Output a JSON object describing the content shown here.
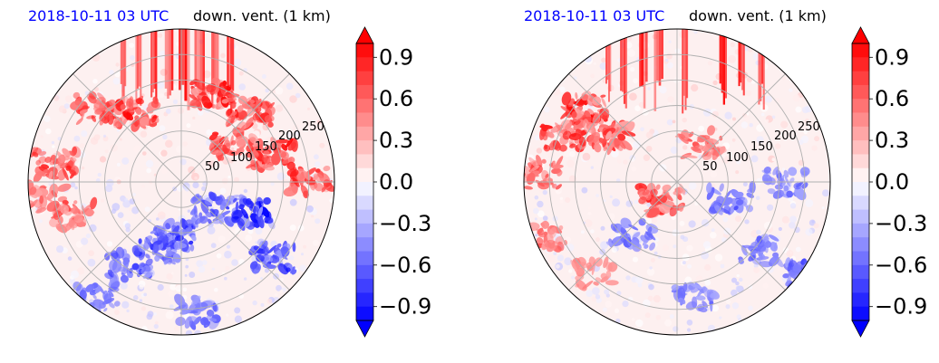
{
  "chart_data": [
    {
      "type": "heatmap",
      "projection": "polar",
      "title_left": "2018-10-11 03 UTC",
      "title_right": "down. vent. (1 km)",
      "radial_ticks": [
        "50",
        "100",
        "150",
        "200",
        "250"
      ],
      "radial_values": [
        50,
        100,
        150,
        200,
        250
      ],
      "rmax": 300,
      "grid": true,
      "colormap": "bwr",
      "clim": [
        -1.0,
        1.0
      ],
      "colorbar_ticks": [
        "0.9",
        "0.6",
        "0.3",
        "0.0",
        "−0.3",
        "−0.6",
        "−0.9"
      ],
      "colorbar_values": [
        0.9,
        0.6,
        0.3,
        0.0,
        -0.3,
        -0.6,
        -0.9
      ],
      "colorbar_extend": "both",
      "features": {
        "streaks": [
          [
            -0.38,
            0.05
          ],
          [
            -0.28,
            0.08
          ],
          [
            -0.18,
            0.1
          ],
          [
            -0.08,
            0.2
          ],
          [
            0.02,
            0.35
          ],
          [
            0.12,
            0.3
          ],
          [
            0.22,
            0.15
          ],
          [
            0.32,
            0.12
          ]
        ],
        "red_patches": [
          [
            -0.82,
            0.12,
            0.8
          ],
          [
            -0.7,
            -0.22,
            0.6
          ],
          [
            -0.55,
            0.48,
            0.9
          ],
          [
            -0.3,
            0.45,
            1.0
          ],
          [
            0.2,
            0.58,
            0.95
          ],
          [
            0.45,
            0.45,
            0.9
          ],
          [
            0.6,
            0.18,
            1.0
          ],
          [
            0.85,
            0.0,
            0.85
          ],
          [
            0.35,
            0.25,
            0.8
          ],
          [
            -0.9,
            -0.1,
            0.5
          ]
        ],
        "blue_patches": [
          [
            -0.05,
            -0.35,
            0.95
          ],
          [
            0.22,
            -0.18,
            0.7
          ],
          [
            0.45,
            -0.2,
            1.0
          ],
          [
            0.6,
            -0.5,
            0.9
          ],
          [
            -0.35,
            -0.55,
            0.7
          ],
          [
            -0.55,
            -0.75,
            0.4
          ],
          [
            0.1,
            -0.85,
            0.4
          ],
          [
            -0.15,
            -0.45,
            0.8
          ]
        ]
      }
    },
    {
      "type": "heatmap",
      "projection": "polar",
      "title_left": "2018-10-11 03 UTC",
      "title_right": "down. vent. (1 km)",
      "radial_ticks": [
        "50",
        "100",
        "150",
        "200",
        "250"
      ],
      "radial_values": [
        50,
        100,
        150,
        200,
        250
      ],
      "rmax": 300,
      "grid": true,
      "colormap": "bwr",
      "clim": [
        -1.0,
        1.0
      ],
      "colorbar_ticks": [
        "0.9",
        "0.6",
        "0.3",
        "0.0",
        "−0.3",
        "−0.6",
        "−0.9"
      ],
      "colorbar_values": [
        0.9,
        0.6,
        0.3,
        0.0,
        -0.3,
        -0.6,
        -0.9
      ],
      "colorbar_extend": "both",
      "features": {
        "streaks": [
          [
            -0.45,
            0.05
          ],
          [
            -0.35,
            0.12
          ],
          [
            -0.22,
            0.2
          ],
          [
            -0.12,
            0.25
          ],
          [
            0.05,
            0.08
          ],
          [
            0.3,
            0.15
          ],
          [
            0.42,
            0.1
          ],
          [
            0.55,
            0.1
          ]
        ],
        "red_patches": [
          [
            -0.6,
            0.48,
            1.0
          ],
          [
            -0.75,
            0.3,
            0.9
          ],
          [
            -0.45,
            0.3,
            0.8
          ],
          [
            -0.9,
            0.05,
            0.6
          ],
          [
            -0.85,
            -0.35,
            0.5
          ],
          [
            -0.1,
            -0.12,
            0.8
          ],
          [
            0.15,
            0.25,
            0.5
          ],
          [
            -0.55,
            -0.6,
            0.3
          ]
        ],
        "blue_patches": [
          [
            0.35,
            -0.1,
            0.5
          ],
          [
            0.55,
            -0.45,
            0.5
          ],
          [
            -0.3,
            -0.35,
            0.4
          ],
          [
            0.7,
            0.0,
            0.4
          ],
          [
            0.85,
            -0.6,
            0.6
          ],
          [
            0.1,
            -0.75,
            0.35
          ]
        ]
      }
    }
  ]
}
